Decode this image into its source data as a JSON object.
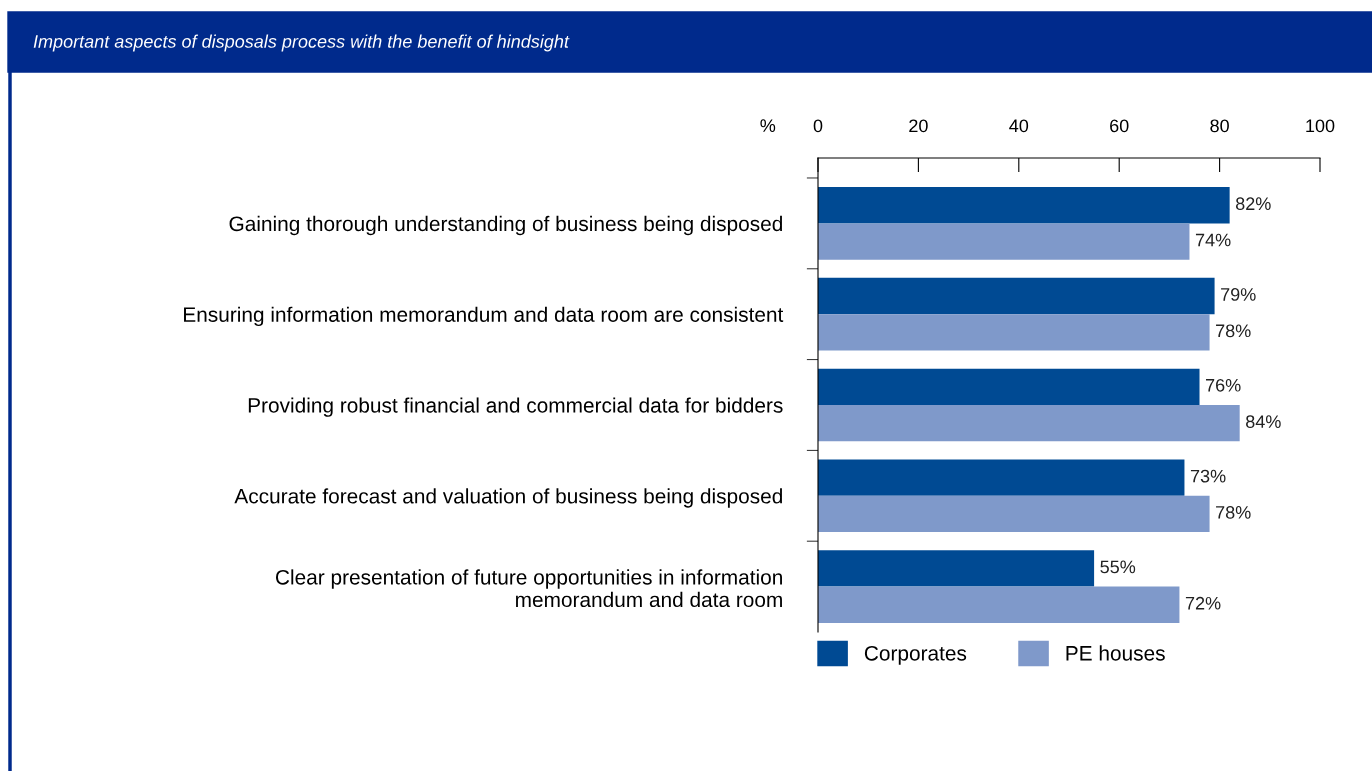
{
  "chart_data": {
    "type": "bar",
    "orientation": "horizontal",
    "title": "Important aspects of disposals process with the benefit of hindsight",
    "xlabel": "%",
    "categories": [
      "Gaining thorough understanding of business being disposed",
      "Ensuring information memorandum and data room are consistent",
      "Providing robust financial and commercial data for bidders",
      "Accurate forecast and valuation of business being disposed",
      "Clear presentation of future opportunities in information\nmemorandum and data room"
    ],
    "series": [
      {
        "name": "Corporates",
        "color": "#004a93",
        "values": [
          82,
          79,
          76,
          73,
          55
        ],
        "value_labels": [
          "82%",
          "79%",
          "76%",
          "73%",
          "55%"
        ]
      },
      {
        "name": "PE houses",
        "color": "#7f99ca",
        "values": [
          74,
          78,
          84,
          78,
          72
        ],
        "value_labels": [
          "74%",
          "78%",
          "84%",
          "78%",
          "72%"
        ]
      }
    ],
    "xlim": [
      0,
      100
    ],
    "xticks": [
      0,
      20,
      40,
      60,
      80,
      100
    ],
    "grid": false,
    "legend": "bottom"
  }
}
